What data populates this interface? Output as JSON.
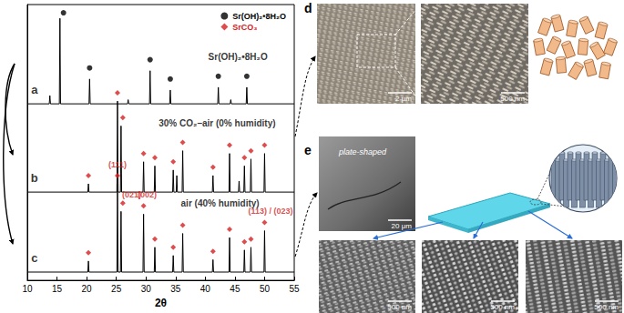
{
  "chart_data": {
    "type": "line",
    "xlabel": "2θ",
    "xlim": [
      10,
      55
    ],
    "xticks": [
      10,
      15,
      20,
      25,
      30,
      35,
      40,
      45,
      50,
      55
    ],
    "ylim": [
      0,
      100
    ],
    "tick_labels": "x",
    "grid": false,
    "legend": "upper right",
    "series": [
      {
        "label": "a",
        "caption": "Sr(OH)₂•8H₂O",
        "color": "#000000",
        "points": [
          [
            10,
            64
          ],
          [
            13.7,
            64
          ],
          [
            13.8,
            67
          ],
          [
            13.9,
            64
          ],
          [
            15.4,
            64
          ],
          [
            15.5,
            95
          ],
          [
            15.6,
            64
          ],
          [
            20.4,
            64
          ],
          [
            20.5,
            73
          ],
          [
            20.6,
            64
          ],
          [
            26.9,
            64
          ],
          [
            27.0,
            65.5
          ],
          [
            27.1,
            64
          ],
          [
            30.6,
            64
          ],
          [
            30.7,
            76
          ],
          [
            30.8,
            64
          ],
          [
            34.0,
            64
          ],
          [
            34.1,
            69
          ],
          [
            34.2,
            64
          ],
          [
            42.1,
            64
          ],
          [
            42.2,
            70
          ],
          [
            42.3,
            64
          ],
          [
            44.2,
            64
          ],
          [
            44.3,
            65.5
          ],
          [
            44.4,
            64
          ],
          [
            46.9,
            64
          ],
          [
            47.0,
            70
          ],
          [
            47.1,
            64
          ],
          [
            55,
            64
          ]
        ]
      },
      {
        "label": "b",
        "caption": "30% CO₂–air (0% humidity)",
        "color": "#000000",
        "points": [
          [
            10,
            32
          ],
          [
            20.2,
            32
          ],
          [
            20.3,
            35
          ],
          [
            20.4,
            32
          ],
          [
            25.1,
            32
          ],
          [
            25.2,
            65
          ],
          [
            25.3,
            32
          ],
          [
            25.7,
            32
          ],
          [
            25.8,
            56
          ],
          [
            25.9,
            32
          ],
          [
            29.5,
            32
          ],
          [
            29.6,
            43
          ],
          [
            29.7,
            32
          ],
          [
            31.4,
            32
          ],
          [
            31.5,
            41.5
          ],
          [
            31.6,
            32
          ],
          [
            34.5,
            32
          ],
          [
            34.6,
            40
          ],
          [
            34.7,
            32
          ],
          [
            35.1,
            32
          ],
          [
            35.2,
            38
          ],
          [
            35.3,
            32
          ],
          [
            36.1,
            32
          ],
          [
            36.2,
            47
          ],
          [
            36.3,
            32
          ],
          [
            41.2,
            32
          ],
          [
            41.3,
            38
          ],
          [
            41.4,
            32
          ],
          [
            44.0,
            32
          ],
          [
            44.1,
            46
          ],
          [
            44.2,
            32
          ],
          [
            45.6,
            32
          ],
          [
            45.7,
            36
          ],
          [
            45.8,
            32
          ],
          [
            46.5,
            32
          ],
          [
            46.6,
            41.5
          ],
          [
            46.7,
            32
          ],
          [
            47.6,
            32
          ],
          [
            47.7,
            44
          ],
          [
            47.8,
            32
          ],
          [
            49.9,
            32
          ],
          [
            50.0,
            46
          ],
          [
            50.1,
            32
          ],
          [
            55,
            32
          ]
        ]
      },
      {
        "label": "c",
        "caption": "air (40% humidity)",
        "color": "#000000",
        "points": [
          [
            10,
            3
          ],
          [
            20.2,
            3
          ],
          [
            20.3,
            7
          ],
          [
            20.4,
            3
          ],
          [
            25.1,
            3
          ],
          [
            25.2,
            35
          ],
          [
            25.3,
            3
          ],
          [
            25.7,
            3
          ],
          [
            25.8,
            25
          ],
          [
            25.9,
            3
          ],
          [
            29.5,
            3
          ],
          [
            29.6,
            24
          ],
          [
            29.7,
            3
          ],
          [
            31.4,
            3
          ],
          [
            31.5,
            12
          ],
          [
            31.6,
            3
          ],
          [
            34.5,
            3
          ],
          [
            34.6,
            9
          ],
          [
            34.7,
            3
          ],
          [
            36.1,
            3
          ],
          [
            36.2,
            17
          ],
          [
            36.3,
            3
          ],
          [
            41.2,
            3
          ],
          [
            41.3,
            7.5
          ],
          [
            41.4,
            3
          ],
          [
            44.0,
            3
          ],
          [
            44.1,
            15.5
          ],
          [
            44.2,
            3
          ],
          [
            46.5,
            3
          ],
          [
            46.6,
            11
          ],
          [
            46.7,
            3
          ],
          [
            47.6,
            3
          ],
          [
            47.7,
            12
          ],
          [
            47.8,
            3
          ],
          [
            49.9,
            3
          ],
          [
            50.0,
            18
          ],
          [
            50.1,
            3
          ],
          [
            55,
            3
          ]
        ]
      }
    ],
    "markers": [
      {
        "name": "Sr(OH)₂•8H₂O",
        "color": "#000000",
        "marker": "circle",
        "points": [
          [
            16.1,
            97
          ],
          [
            20.5,
            77
          ],
          [
            30.7,
            80
          ],
          [
            34.1,
            73
          ],
          [
            42.2,
            74
          ],
          [
            47.0,
            74
          ]
        ]
      },
      {
        "name": "SrCO₃",
        "color": "#d62020",
        "marker": "diamond",
        "points": [
          [
            20.3,
            38
          ],
          [
            25.2,
            68
          ],
          [
            26.1,
            59
          ],
          [
            29.6,
            46
          ],
          [
            31.5,
            44.5
          ],
          [
            34.6,
            43
          ],
          [
            36.2,
            50
          ],
          [
            41.3,
            41
          ],
          [
            44.1,
            49
          ],
          [
            46.6,
            44.5
          ],
          [
            47.7,
            47
          ],
          [
            50.0,
            49
          ],
          [
            20.3,
            10
          ],
          [
            25.2,
            38
          ],
          [
            26.1,
            28
          ],
          [
            29.6,
            27
          ],
          [
            31.5,
            15
          ],
          [
            34.6,
            12
          ],
          [
            36.2,
            20
          ],
          [
            41.3,
            10.5
          ],
          [
            44.1,
            18.5
          ],
          [
            46.6,
            14
          ],
          [
            47.7,
            15
          ],
          [
            50.0,
            21
          ]
        ]
      }
    ],
    "annotations": [
      {
        "text": "(111)",
        "x": 25.2,
        "y": 42,
        "color": "#d62020"
      },
      {
        "text": "(021)",
        "x": 27.6,
        "y": 31,
        "color": "#d62020"
      },
      {
        "text": "(002)",
        "x": 30.2,
        "y": 31,
        "color": "#d62020"
      },
      {
        "text": "(113) / (023)",
        "x": 51.0,
        "y": 25,
        "color": "#d62020"
      }
    ]
  },
  "panels": {
    "d": {
      "label": "d",
      "images": [
        {
          "scale_bar": "2 μm"
        },
        {
          "scale_bar": "500 nm"
        }
      ]
    },
    "e": {
      "label": "e",
      "images": [
        {
          "scale_bar": "20 μm",
          "caption": "plate-shaped"
        },
        {
          "scale_bar": "500 nm"
        },
        {
          "scale_bar": "500 nm"
        },
        {
          "scale_bar": "500 nm"
        }
      ]
    }
  }
}
